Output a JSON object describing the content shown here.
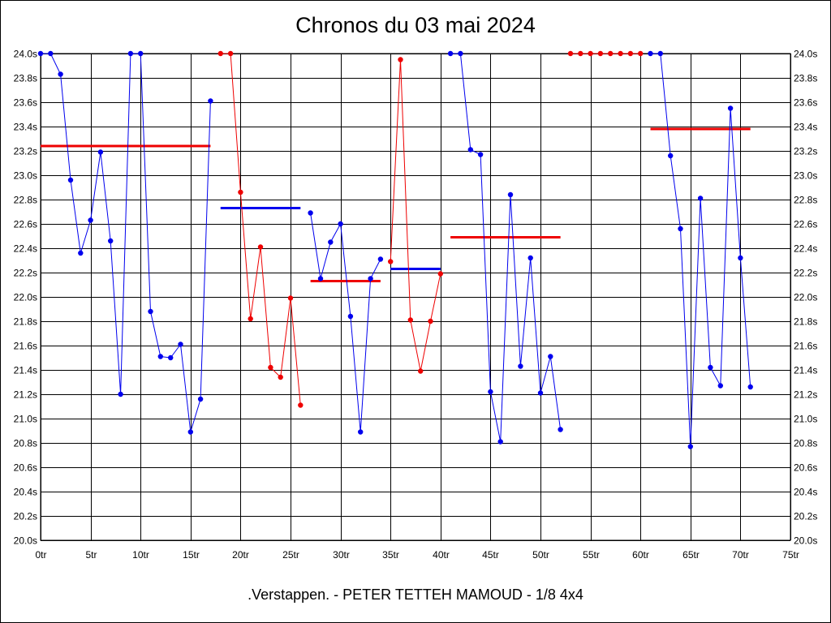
{
  "title": "Chronos du 03 mai 2024",
  "footer": ".Verstappen. - PETER TETTEH MAMOUD - 1/8 4x4",
  "colors": {
    "series_a": "#0000ee",
    "series_b": "#ee0000",
    "grid": "#000000"
  },
  "chart_data": {
    "type": "line",
    "grid": true,
    "xlim": [
      0,
      75
    ],
    "ylim": [
      20.0,
      24.0
    ],
    "x_ticks": [
      0,
      5,
      10,
      15,
      20,
      25,
      30,
      35,
      40,
      45,
      50,
      55,
      60,
      65,
      70,
      75
    ],
    "x_tick_labels": [
      "0tr",
      "5tr",
      "10tr",
      "15tr",
      "20tr",
      "25tr",
      "30tr",
      "35tr",
      "40tr",
      "45tr",
      "50tr",
      "55tr",
      "60tr",
      "65tr",
      "70tr",
      "75tr"
    ],
    "y_ticks": [
      20.0,
      20.2,
      20.4,
      20.6,
      20.8,
      21.0,
      21.2,
      21.4,
      21.6,
      21.8,
      22.0,
      22.2,
      22.4,
      22.6,
      22.8,
      23.0,
      23.2,
      23.4,
      23.6,
      23.8,
      24.0
    ],
    "y_tick_labels": [
      "20.0s",
      "20.2s",
      "20.4s",
      "20.6s",
      "20.8s",
      "21.0s",
      "21.2s",
      "21.4s",
      "21.6s",
      "21.8s",
      "22.0s",
      "22.2s",
      "22.4s",
      "22.6s",
      "22.8s",
      "23.0s",
      "23.2s",
      "23.4s",
      "23.6s",
      "23.8s",
      "24.0s"
    ],
    "segments": [
      {
        "color": "blue",
        "points": [
          [
            0,
            24.0
          ],
          [
            1,
            24.0
          ],
          [
            2,
            23.83
          ],
          [
            3,
            22.96
          ],
          [
            4,
            22.36
          ],
          [
            5,
            22.63
          ],
          [
            6,
            23.19
          ],
          [
            7,
            22.46
          ],
          [
            8,
            21.2
          ],
          [
            9,
            24.0
          ],
          [
            10,
            24.0
          ],
          [
            11,
            21.88
          ],
          [
            12,
            21.51
          ],
          [
            13,
            21.5
          ],
          [
            14,
            21.61
          ],
          [
            15,
            20.89
          ],
          [
            16,
            21.16
          ],
          [
            17,
            23.61
          ]
        ]
      },
      {
        "color": "red",
        "points": [
          [
            18,
            24.0
          ],
          [
            19,
            24.0
          ],
          [
            20,
            22.86
          ],
          [
            21,
            21.82
          ],
          [
            22,
            22.41
          ],
          [
            23,
            21.42
          ],
          [
            24,
            21.34
          ],
          [
            25,
            21.99
          ],
          [
            26,
            21.11
          ]
        ]
      },
      {
        "color": "blue",
        "points": [
          [
            27,
            22.69
          ],
          [
            28,
            22.15
          ],
          [
            29,
            22.45
          ],
          [
            30,
            22.6
          ],
          [
            31,
            21.84
          ],
          [
            32,
            20.89
          ],
          [
            33,
            22.15
          ],
          [
            34,
            22.31
          ]
        ]
      },
      {
        "color": "red",
        "points": [
          [
            35,
            22.29
          ],
          [
            36,
            23.95
          ],
          [
            37,
            21.81
          ],
          [
            38,
            21.39
          ],
          [
            39,
            21.8
          ],
          [
            40,
            22.19
          ]
        ]
      },
      {
        "color": "blue",
        "points": [
          [
            41,
            24.0
          ],
          [
            42,
            24.0
          ],
          [
            43,
            23.21
          ],
          [
            44,
            23.17
          ],
          [
            45,
            21.22
          ],
          [
            46,
            20.81
          ],
          [
            47,
            22.84
          ],
          [
            48,
            21.43
          ],
          [
            49,
            22.32
          ],
          [
            50,
            21.21
          ],
          [
            51,
            21.51
          ],
          [
            52,
            20.91
          ]
        ]
      },
      {
        "color": "red",
        "points": [
          [
            53,
            24.0
          ],
          [
            54,
            24.0
          ],
          [
            55,
            24.0
          ],
          [
            56,
            24.0
          ],
          [
            57,
            24.0
          ],
          [
            58,
            24.0
          ],
          [
            59,
            24.0
          ],
          [
            60,
            24.0
          ]
        ]
      },
      {
        "color": "blue",
        "points": [
          [
            61,
            24.0
          ],
          [
            62,
            24.0
          ],
          [
            63,
            23.16
          ],
          [
            64,
            22.56
          ],
          [
            65,
            20.77
          ],
          [
            66,
            22.81
          ],
          [
            67,
            21.42
          ],
          [
            68,
            21.27
          ],
          [
            69,
            23.55
          ],
          [
            70,
            22.32
          ],
          [
            71,
            21.26
          ]
        ]
      }
    ],
    "averages": [
      {
        "color": "red",
        "from": 0,
        "to": 17,
        "value": 23.24
      },
      {
        "color": "blue",
        "from": 18,
        "to": 26,
        "value": 22.73
      },
      {
        "color": "red",
        "from": 27,
        "to": 34,
        "value": 22.13
      },
      {
        "color": "blue",
        "from": 35,
        "to": 40,
        "value": 22.23
      },
      {
        "color": "red",
        "from": 41,
        "to": 52,
        "value": 22.49
      },
      {
        "color": "red",
        "from": 61,
        "to": 71,
        "value": 23.38
      }
    ]
  }
}
